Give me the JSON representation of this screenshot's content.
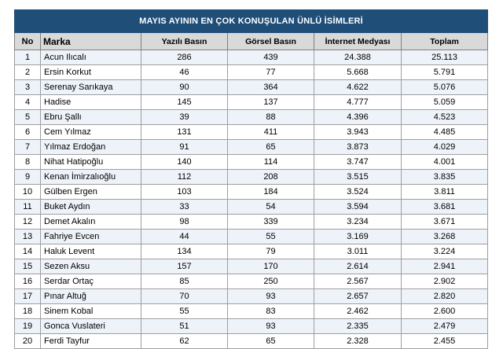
{
  "table": {
    "title": "MAYIS AYININ EN ÇOK KONUŞULAN ÜNLÜ İSİMLERİ",
    "headers": {
      "no": "No",
      "marka": "Marka",
      "yazili": "Yazılı Basın",
      "gorsel": "Görsel Basın",
      "internet": "İnternet Medyası",
      "toplam": "Toplam"
    },
    "rows": [
      {
        "no": "1",
        "marka": "Acun Ilıcalı",
        "yazili": "286",
        "gorsel": "439",
        "internet": "24.388",
        "toplam": "25.113"
      },
      {
        "no": "2",
        "marka": "Ersin Korkut",
        "yazili": "46",
        "gorsel": "77",
        "internet": "5.668",
        "toplam": "5.791"
      },
      {
        "no": "3",
        "marka": "Serenay Sarıkaya",
        "yazili": "90",
        "gorsel": "364",
        "internet": "4.622",
        "toplam": "5.076"
      },
      {
        "no": "4",
        "marka": "Hadise",
        "yazili": "145",
        "gorsel": "137",
        "internet": "4.777",
        "toplam": "5.059"
      },
      {
        "no": "5",
        "marka": "Ebru Şallı",
        "yazili": "39",
        "gorsel": "88",
        "internet": "4.396",
        "toplam": "4.523"
      },
      {
        "no": "6",
        "marka": "Cem Yılmaz",
        "yazili": "131",
        "gorsel": "411",
        "internet": "3.943",
        "toplam": "4.485"
      },
      {
        "no": "7",
        "marka": "Yılmaz Erdoğan",
        "yazili": "91",
        "gorsel": "65",
        "internet": "3.873",
        "toplam": "4.029"
      },
      {
        "no": "8",
        "marka": "Nihat Hatipoğlu",
        "yazili": "140",
        "gorsel": "114",
        "internet": "3.747",
        "toplam": "4.001"
      },
      {
        "no": "9",
        "marka": "Kenan İmirzalıoğlu",
        "yazili": "112",
        "gorsel": "208",
        "internet": "3.515",
        "toplam": "3.835"
      },
      {
        "no": "10",
        "marka": "Gülben Ergen",
        "yazili": "103",
        "gorsel": "184",
        "internet": "3.524",
        "toplam": "3.811"
      },
      {
        "no": "11",
        "marka": "Buket Aydın",
        "yazili": "33",
        "gorsel": "54",
        "internet": "3.594",
        "toplam": "3.681"
      },
      {
        "no": "12",
        "marka": "Demet Akalın",
        "yazili": "98",
        "gorsel": "339",
        "internet": "3.234",
        "toplam": "3.671"
      },
      {
        "no": "13",
        "marka": "Fahriye Evcen",
        "yazili": "44",
        "gorsel": "55",
        "internet": "3.169",
        "toplam": "3.268"
      },
      {
        "no": "14",
        "marka": "Haluk Levent",
        "yazili": "134",
        "gorsel": "79",
        "internet": "3.011",
        "toplam": "3.224"
      },
      {
        "no": "15",
        "marka": "Sezen Aksu",
        "yazili": "157",
        "gorsel": "170",
        "internet": "2.614",
        "toplam": "2.941"
      },
      {
        "no": "16",
        "marka": "Serdar Ortaç",
        "yazili": "85",
        "gorsel": "250",
        "internet": "2.567",
        "toplam": "2.902"
      },
      {
        "no": "17",
        "marka": "Pınar Altuğ",
        "yazili": "70",
        "gorsel": "93",
        "internet": "2.657",
        "toplam": "2.820"
      },
      {
        "no": "18",
        "marka": "Sinem Kobal",
        "yazili": "55",
        "gorsel": "83",
        "internet": "2.462",
        "toplam": "2.600"
      },
      {
        "no": "19",
        "marka": "Gonca Vuslateri",
        "yazili": "51",
        "gorsel": "93",
        "internet": "2.335",
        "toplam": "2.479"
      },
      {
        "no": "20",
        "marka": "Ferdi Tayfur",
        "yazili": "62",
        "gorsel": "65",
        "internet": "2.328",
        "toplam": "2.455"
      }
    ]
  }
}
